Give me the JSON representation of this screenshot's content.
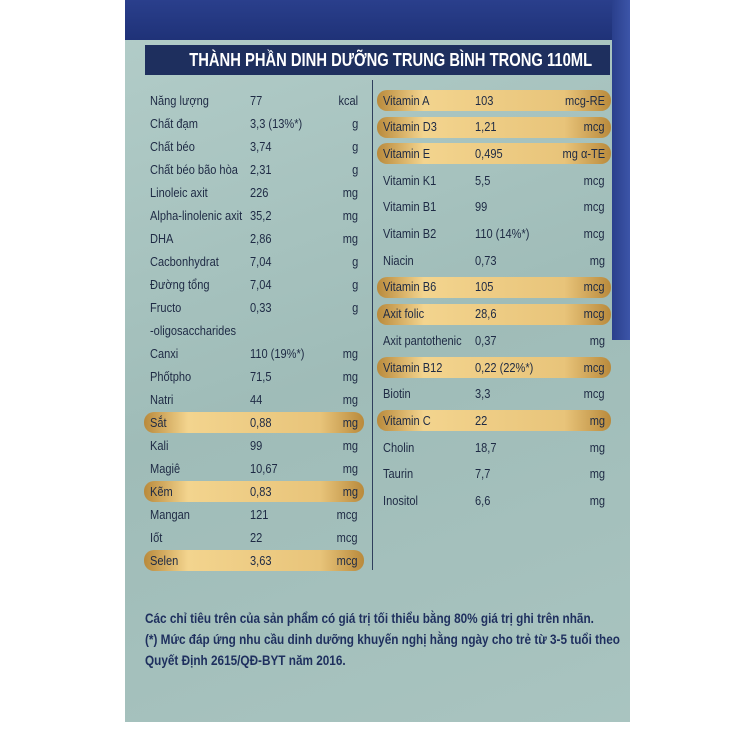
{
  "header": {
    "title": "THÀNH PHẦN DINH DƯỠNG TRUNG BÌNH TRONG 110ML"
  },
  "left_table": {
    "rows": [
      {
        "name": "Năng lượng",
        "value": "77",
        "unit": "kcal",
        "highlighted": false
      },
      {
        "name": "Chất đạm",
        "value": "3,3 (13%*)",
        "unit": "g",
        "highlighted": false
      },
      {
        "name": "Chất béo",
        "value": "3,74",
        "unit": "g",
        "highlighted": false
      },
      {
        "name": "Chất béo bão hòa",
        "value": "2,31",
        "unit": "g",
        "highlighted": false
      },
      {
        "name": "Linoleic axit",
        "value": "226",
        "unit": "mg",
        "highlighted": false
      },
      {
        "name": "Alpha-linolenic axit",
        "value": "35,2",
        "unit": "mg",
        "highlighted": false
      },
      {
        "name": "DHA",
        "value": "2,86",
        "unit": "mg",
        "highlighted": false
      },
      {
        "name": "Cacbonhydrat",
        "value": "7,04",
        "unit": "g",
        "highlighted": false
      },
      {
        "name": "Đường tổng",
        "value": "7,04",
        "unit": "g",
        "highlighted": false
      },
      {
        "name": "Fructo\n-oligosaccharides",
        "value": "0,33",
        "unit": "g",
        "highlighted": false
      },
      {
        "name": "Canxi",
        "value": "110 (19%*)",
        "unit": "mg",
        "highlighted": false
      },
      {
        "name": "Phốtpho",
        "value": "71,5",
        "unit": "mg",
        "highlighted": false
      },
      {
        "name": "Natri",
        "value": "44",
        "unit": "mg",
        "highlighted": false
      },
      {
        "name": "Sắt",
        "value": "0,88",
        "unit": "mg",
        "highlighted": true
      },
      {
        "name": "Kali",
        "value": "99",
        "unit": "mg",
        "highlighted": false
      },
      {
        "name": "Magiê",
        "value": "10,67",
        "unit": "mg",
        "highlighted": false
      },
      {
        "name": "Kẽm",
        "value": "0,83",
        "unit": "mg",
        "highlighted": true
      },
      {
        "name": "Mangan",
        "value": "121",
        "unit": "mcg",
        "highlighted": false
      },
      {
        "name": "Iốt",
        "value": "22",
        "unit": "mcg",
        "highlighted": false
      },
      {
        "name": "Selen",
        "value": "3,63",
        "unit": "mcg",
        "highlighted": true
      }
    ]
  },
  "right_table": {
    "rows": [
      {
        "name": "Vitamin A",
        "value": "103",
        "unit": "mcg-RE",
        "highlighted": true
      },
      {
        "name": "Vitamin D3",
        "value": "1,21",
        "unit": "mcg",
        "highlighted": true
      },
      {
        "name": "Vitamin E",
        "value": "0,495",
        "unit": "mg α-TE",
        "highlighted": true
      },
      {
        "name": "Vitamin K1",
        "value": "5,5",
        "unit": "mcg",
        "highlighted": false
      },
      {
        "name": "Vitamin B1",
        "value": "99",
        "unit": "mcg",
        "highlighted": false
      },
      {
        "name": "Vitamin B2",
        "value": "110 (14%*)",
        "unit": "mcg",
        "highlighted": false
      },
      {
        "name": "Niacin",
        "value": "0,73",
        "unit": "mg",
        "highlighted": false
      },
      {
        "name": "Vitamin B6",
        "value": "105",
        "unit": "mcg",
        "highlighted": true
      },
      {
        "name": "Axit folic",
        "value": "28,6",
        "unit": "mcg",
        "highlighted": true
      },
      {
        "name": "Axit pantothenic",
        "value": "0,37",
        "unit": "mg",
        "highlighted": false
      },
      {
        "name": "Vitamin B12",
        "value": "0,22 (22%*)",
        "unit": "mcg",
        "highlighted": true
      },
      {
        "name": "Biotin",
        "value": "3,3",
        "unit": "mcg",
        "highlighted": false
      },
      {
        "name": "Vitamin C",
        "value": "22",
        "unit": "mg",
        "highlighted": true
      },
      {
        "name": "Cholin",
        "value": "18,7",
        "unit": "mg",
        "highlighted": false
      },
      {
        "name": "Taurin",
        "value": "7,7",
        "unit": "mg",
        "highlighted": false
      },
      {
        "name": "Inositol",
        "value": "6,6",
        "unit": "mg",
        "highlighted": false
      }
    ]
  },
  "footnotes": [
    "Các chỉ tiêu trên của sản phẩm có giá trị tối thiểu bằng 80% giá trị ghi trên nhãn.",
    "(*) Mức đáp ứng nhu cầu dinh dưỡng khuyến nghị hằng ngày cho trẻ từ 3-5 tuổi theo",
    "Quyết Định 2615/QĐ-BYT năm 2016."
  ]
}
